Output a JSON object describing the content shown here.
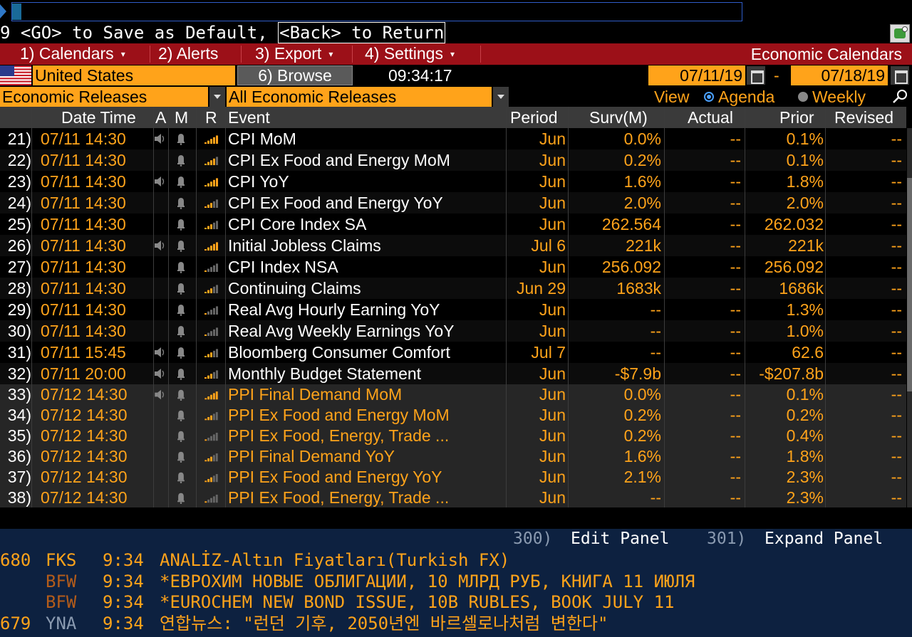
{
  "command_hint": {
    "prefix": "9 <GO> to Save as Default, ",
    "back": "<Back> to Return"
  },
  "menu": {
    "items": [
      {
        "label": "1) Calendars"
      },
      {
        "label": "2) Alerts"
      },
      {
        "label": "3) Export"
      },
      {
        "label": "4) Settings"
      }
    ],
    "app_title": "Economic Calendars"
  },
  "toolbar": {
    "country": "United States",
    "browse": "6) Browse",
    "time": "09:34:17",
    "date_from": "07/11/19",
    "date_sep": "-",
    "date_to": "07/18/19"
  },
  "filters": {
    "category": "Economic Releases",
    "subcategory": "All Economic Releases",
    "view_label": "View",
    "view_agenda": "Agenda",
    "view_weekly": "Weekly",
    "selected_view": "Agenda"
  },
  "table": {
    "headers": {
      "datetime": "Date Time",
      "a": "A",
      "m": "M",
      "r": "R",
      "event": "Event",
      "period": "Period",
      "surv": "Surv(M)",
      "actual": "Actual",
      "prior": "Prior",
      "revised": "Revised"
    },
    "rows": [
      {
        "num": "21)",
        "datetime": "07/11 14:30",
        "alert": true,
        "relevance": 5,
        "event": "CPI MoM",
        "period": "Jun",
        "surv": "0.0%",
        "actual": "--",
        "prior": "0.1%",
        "revised": "--",
        "group": "a"
      },
      {
        "num": "22)",
        "datetime": "07/11 14:30",
        "alert": false,
        "relevance": 4,
        "event": "CPI Ex Food and Energy MoM",
        "period": "Jun",
        "surv": "0.2%",
        "actual": "--",
        "prior": "0.1%",
        "revised": "--",
        "group": "a"
      },
      {
        "num": "23)",
        "datetime": "07/11 14:30",
        "alert": true,
        "relevance": 5,
        "event": "CPI YoY",
        "period": "Jun",
        "surv": "1.6%",
        "actual": "--",
        "prior": "1.8%",
        "revised": "--",
        "group": "a"
      },
      {
        "num": "24)",
        "datetime": "07/11 14:30",
        "alert": false,
        "relevance": 3,
        "event": "CPI Ex Food and Energy YoY",
        "period": "Jun",
        "surv": "2.0%",
        "actual": "--",
        "prior": "2.0%",
        "revised": "--",
        "group": "a"
      },
      {
        "num": "25)",
        "datetime": "07/11 14:30",
        "alert": false,
        "relevance": 3,
        "event": "CPI Core Index SA",
        "period": "Jun",
        "surv": "262.564",
        "actual": "--",
        "prior": "262.032",
        "revised": "--",
        "group": "a"
      },
      {
        "num": "26)",
        "datetime": "07/11 14:30",
        "alert": true,
        "relevance": 5,
        "event": "Initial Jobless Claims",
        "period": "Jul 6",
        "surv": "221k",
        "actual": "--",
        "prior": "221k",
        "revised": "--",
        "group": "a"
      },
      {
        "num": "27)",
        "datetime": "07/11 14:30",
        "alert": false,
        "relevance": 1,
        "event": "CPI Index NSA",
        "period": "Jun",
        "surv": "256.092",
        "actual": "--",
        "prior": "256.092",
        "revised": "--",
        "group": "a"
      },
      {
        "num": "28)",
        "datetime": "07/11 14:30",
        "alert": false,
        "relevance": 3,
        "event": "Continuing Claims",
        "period": "Jun 29",
        "surv": "1683k",
        "actual": "--",
        "prior": "1686k",
        "revised": "--",
        "group": "a"
      },
      {
        "num": "29)",
        "datetime": "07/11 14:30",
        "alert": false,
        "relevance": 1,
        "event": "Real Avg Hourly Earning YoY",
        "period": "Jun",
        "surv": "--",
        "actual": "--",
        "prior": "1.3%",
        "revised": "--",
        "group": "a"
      },
      {
        "num": "30)",
        "datetime": "07/11 14:30",
        "alert": false,
        "relevance": 1,
        "event": "Real Avg Weekly Earnings YoY",
        "period": "Jun",
        "surv": "--",
        "actual": "--",
        "prior": "1.0%",
        "revised": "--",
        "group": "a"
      },
      {
        "num": "31)",
        "datetime": "07/11 15:45",
        "alert": true,
        "relevance": 3,
        "event": "Bloomberg Consumer Comfort",
        "period": "Jul 7",
        "surv": "--",
        "actual": "--",
        "prior": "62.6",
        "revised": "--",
        "group": "a"
      },
      {
        "num": "32)",
        "datetime": "07/11 20:00",
        "alert": true,
        "relevance": 3,
        "event": "Monthly Budget Statement",
        "period": "Jun",
        "surv": "-$7.9b",
        "actual": "--",
        "prior": "-$207.8b",
        "revised": "--",
        "group": "a"
      },
      {
        "num": "33)",
        "datetime": "07/12 14:30",
        "alert": true,
        "relevance": 5,
        "event": "PPI Final Demand MoM",
        "period": "Jun",
        "surv": "0.0%",
        "actual": "--",
        "prior": "0.1%",
        "revised": "--",
        "group": "b"
      },
      {
        "num": "34)",
        "datetime": "07/12 14:30",
        "alert": false,
        "relevance": 3,
        "event": "PPI Ex Food and Energy MoM",
        "period": "Jun",
        "surv": "0.2%",
        "actual": "--",
        "prior": "0.2%",
        "revised": "--",
        "group": "b"
      },
      {
        "num": "35)",
        "datetime": "07/12 14:30",
        "alert": false,
        "relevance": 1,
        "event": "PPI Ex Food, Energy, Trade ...",
        "period": "Jun",
        "surv": "0.2%",
        "actual": "--",
        "prior": "0.4%",
        "revised": "--",
        "group": "b"
      },
      {
        "num": "36)",
        "datetime": "07/12 14:30",
        "alert": false,
        "relevance": 3,
        "event": "PPI Final Demand YoY",
        "period": "Jun",
        "surv": "1.6%",
        "actual": "--",
        "prior": "1.8%",
        "revised": "--",
        "group": "b"
      },
      {
        "num": "37)",
        "datetime": "07/12 14:30",
        "alert": false,
        "relevance": 3,
        "event": "PPI Ex Food and Energy YoY",
        "period": "Jun",
        "surv": "2.1%",
        "actual": "--",
        "prior": "2.3%",
        "revised": "--",
        "group": "b"
      },
      {
        "num": "38)",
        "datetime": "07/12 14:30",
        "alert": false,
        "relevance": 1,
        "event": "PPI Ex Food, Energy, Trade ...",
        "period": "Jun",
        "surv": "--",
        "actual": "--",
        "prior": "2.3%",
        "revised": "--",
        "group": "b"
      }
    ]
  },
  "panel": {
    "edit_num": "300)",
    "edit_label": "Edit Panel",
    "expand_num": "301)",
    "expand_label": "Expand Panel"
  },
  "news": [
    {
      "count": "680",
      "source": "FKS",
      "time": "9:34",
      "headline": "ANALİZ-Altın Fiyatları(Turkish FX)"
    },
    {
      "count": "",
      "source": "BFW",
      "time": "9:34",
      "headline": "*ЕВРОХИМ НОВЫЕ ОБЛИГАЦИИ, 10 МЛРД РУБ, КНИГА 11 ИЮЛЯ"
    },
    {
      "count": "",
      "source": "BFW",
      "time": "9:34",
      "headline": "*EUROCHEM NEW BOND ISSUE, 10B RUBLES, BOOK JULY 11"
    },
    {
      "count": "679",
      "source": "YNA",
      "time": "9:34",
      "headline": "연합뉴스: \"런던 기후, 2050년엔 바르셀로나처럼 변한다\""
    }
  ],
  "colors": {
    "orange": "#ffa31a",
    "menu_red": "#9c1018",
    "news_bg": "#0d2140",
    "header_grey": "#3a3a3a",
    "row_alt": "#161616"
  }
}
